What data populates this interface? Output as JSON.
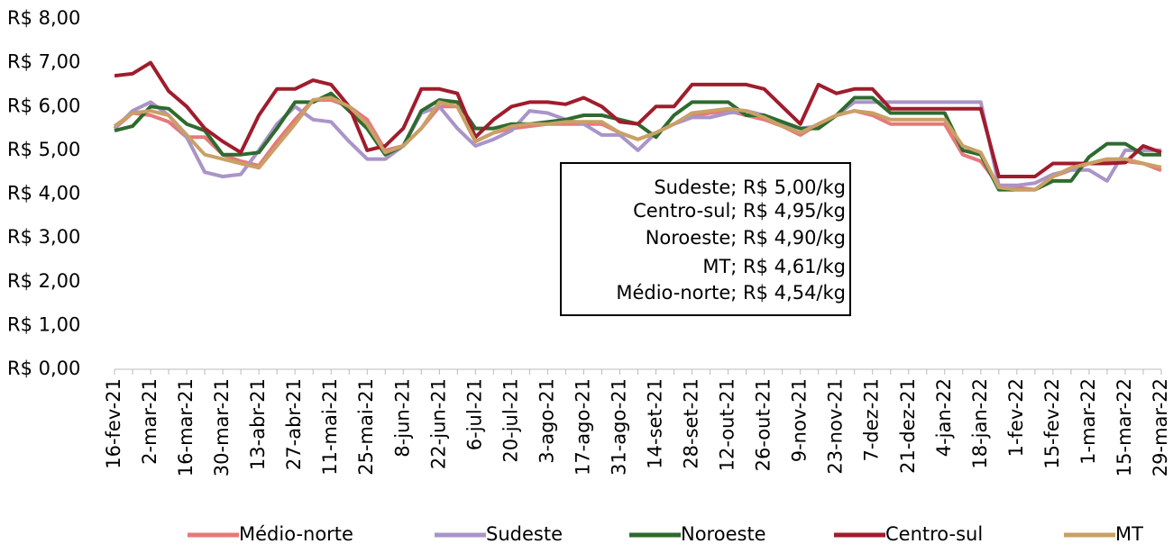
{
  "chart_data": {
    "type": "line",
    "categories": [
      "16-fev-21",
      null,
      "2-mar-21",
      null,
      "16-mar-21",
      null,
      "30-mar-21",
      null,
      "13-abr-21",
      null,
      "27-abr-21",
      null,
      "11-mai-21",
      null,
      "25-mai-21",
      null,
      "8-jun-21",
      null,
      "22-jun-21",
      null,
      "6-jul-21",
      null,
      "20-jul-21",
      null,
      "3-ago-21",
      null,
      "17-ago-21",
      null,
      "31-ago-21",
      null,
      "14-set-21",
      null,
      "28-set-21",
      null,
      "12-out-21",
      null,
      "26-out-21",
      null,
      "9-nov-21",
      null,
      "23-nov-21",
      null,
      "7-dez-21",
      null,
      "21-dez-21",
      null,
      "4-jan-22",
      null,
      "18-jan-22",
      null,
      "1-fev-22",
      null,
      "15-fev-22",
      null,
      "1-mar-22",
      null,
      "15-mar-22",
      null,
      "29-mar-22"
    ],
    "series": [
      {
        "name": "Médio-norte",
        "color": "#e8787a",
        "values": [
          5.5,
          5.85,
          5.8,
          5.65,
          5.3,
          5.3,
          4.9,
          4.75,
          4.65,
          5.2,
          5.7,
          6.15,
          6.15,
          6.0,
          5.7,
          5.0,
          5.1,
          5.5,
          6.0,
          6.0,
          5.2,
          5.4,
          5.5,
          5.55,
          5.6,
          5.6,
          5.6,
          5.6,
          5.4,
          5.25,
          5.4,
          5.6,
          5.8,
          5.85,
          5.9,
          5.8,
          5.7,
          5.55,
          5.35,
          5.6,
          5.8,
          5.9,
          5.8,
          5.6,
          5.6,
          5.6,
          5.6,
          4.9,
          4.75,
          4.2,
          4.15,
          4.1,
          4.4,
          4.55,
          4.7,
          4.75,
          4.75,
          4.7,
          4.54
        ]
      },
      {
        "name": "Sudeste",
        "color": "#a994c8",
        "values": [
          5.5,
          5.9,
          6.1,
          5.8,
          5.3,
          4.5,
          4.4,
          4.45,
          5.0,
          5.6,
          6.0,
          5.7,
          5.65,
          5.2,
          4.8,
          4.8,
          5.1,
          5.85,
          6.0,
          5.5,
          5.1,
          5.25,
          5.45,
          5.9,
          5.85,
          5.7,
          5.6,
          5.35,
          5.35,
          5.0,
          5.4,
          5.6,
          5.75,
          5.75,
          5.85,
          5.9,
          5.8,
          5.6,
          5.5,
          5.55,
          5.8,
          6.1,
          6.1,
          6.1,
          6.1,
          6.1,
          6.1,
          6.1,
          6.1,
          4.2,
          4.2,
          4.25,
          4.45,
          4.55,
          4.55,
          4.3,
          5.0,
          5.0,
          5.0
        ]
      },
      {
        "name": "Noroeste",
        "color": "#2e6b2e",
        "values": [
          5.45,
          5.55,
          6.0,
          5.95,
          5.6,
          5.45,
          4.9,
          4.9,
          4.95,
          5.5,
          6.1,
          6.1,
          6.3,
          5.9,
          5.5,
          4.9,
          5.1,
          5.9,
          6.15,
          6.1,
          5.5,
          5.5,
          5.6,
          5.6,
          5.65,
          5.7,
          5.8,
          5.8,
          5.7,
          5.6,
          5.3,
          5.8,
          6.1,
          6.1,
          6.1,
          5.8,
          5.8,
          5.65,
          5.5,
          5.5,
          5.8,
          6.2,
          6.2,
          5.85,
          5.85,
          5.85,
          5.85,
          5.0,
          4.9,
          4.1,
          4.1,
          4.1,
          4.3,
          4.3,
          4.85,
          5.15,
          5.15,
          4.9,
          4.9
        ]
      },
      {
        "name": "Centro-sul",
        "color": "#a01c2c",
        "values": [
          6.7,
          6.75,
          7.0,
          6.35,
          6.0,
          5.5,
          5.2,
          4.95,
          5.8,
          6.4,
          6.4,
          6.6,
          6.5,
          6.0,
          5.0,
          5.1,
          5.5,
          6.4,
          6.4,
          6.3,
          5.3,
          5.7,
          6.0,
          6.1,
          6.1,
          6.05,
          6.2,
          6.0,
          5.65,
          5.6,
          6.0,
          6.0,
          6.5,
          6.5,
          6.5,
          6.5,
          6.4,
          6.0,
          5.6,
          6.5,
          6.3,
          6.4,
          6.4,
          5.95,
          5.95,
          5.95,
          5.95,
          5.95,
          5.95,
          4.4,
          4.4,
          4.4,
          4.7,
          4.7,
          4.7,
          4.7,
          4.72,
          5.1,
          4.95
        ]
      },
      {
        "name": "MT",
        "color": "#c9a066",
        "values": [
          5.55,
          5.85,
          5.9,
          5.8,
          5.35,
          4.9,
          4.8,
          4.7,
          4.6,
          5.1,
          5.6,
          6.15,
          6.2,
          6.0,
          5.6,
          4.95,
          5.1,
          5.5,
          6.1,
          6.0,
          5.2,
          5.4,
          5.55,
          5.6,
          5.6,
          5.65,
          5.65,
          5.65,
          5.4,
          5.25,
          5.4,
          5.6,
          5.85,
          5.9,
          5.95,
          5.9,
          5.75,
          5.55,
          5.4,
          5.6,
          5.8,
          5.9,
          5.85,
          5.7,
          5.7,
          5.7,
          5.7,
          5.1,
          4.95,
          4.15,
          4.1,
          4.1,
          4.4,
          4.6,
          4.7,
          4.8,
          4.8,
          4.7,
          4.61
        ]
      }
    ],
    "ylim": [
      0,
      8
    ],
    "yticks": [
      {
        "value": 0,
        "label": "R$ 0,00"
      },
      {
        "value": 1,
        "label": "R$ 1,00"
      },
      {
        "value": 2,
        "label": "R$ 2,00"
      },
      {
        "value": 3,
        "label": "R$ 3,00"
      },
      {
        "value": 4,
        "label": "R$ 4,00"
      },
      {
        "value": 5,
        "label": "R$ 5,00"
      },
      {
        "value": 6,
        "label": "R$ 6,00"
      },
      {
        "value": 7,
        "label": "R$ 7,00"
      },
      {
        "value": 8,
        "label": "R$ 8,00"
      }
    ],
    "grid": false,
    "legend": "bottom",
    "annotations": [
      "Sudeste; R$ 5,00/kg",
      "Centro-sul; R$ 4,95/kg",
      "Noroeste; R$ 4,90/kg",
      "MT; R$ 4,61/kg",
      "Médio-norte; R$ 4,54/kg"
    ]
  }
}
